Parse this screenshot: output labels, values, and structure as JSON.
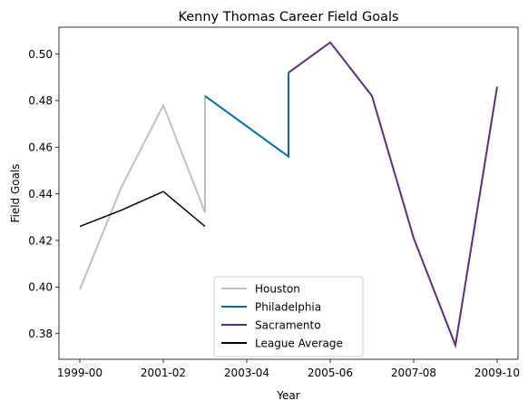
{
  "chart_data": {
    "type": "line",
    "title": "Kenny Thomas  Career Field Goals",
    "xlabel": "Year",
    "ylabel": "Field Goals",
    "x_tick_labels": [
      "1999-00",
      "2001-02",
      "2003-04",
      "2005-06",
      "2007-08",
      "2009-10"
    ],
    "y_ticks": [
      0.38,
      0.4,
      0.42,
      0.44,
      0.46,
      0.48,
      0.5
    ],
    "ylim": [
      0.369,
      0.5115
    ],
    "grid": false,
    "legend_position": "lower center",
    "series": [
      {
        "name": "Houston",
        "color": "#c0c0c0",
        "points": [
          {
            "x": "1999-00",
            "y": 0.399
          },
          {
            "x": "2000-01",
            "y": 0.443
          },
          {
            "x": "2001-02",
            "y": 0.478
          },
          {
            "x": "2002-03",
            "y": 0.432
          },
          {
            "x": "2002-03",
            "y": 0.482
          }
        ]
      },
      {
        "name": "Philadelphia",
        "color": "#006bb6",
        "points": [
          {
            "x": "2002-03",
            "y": 0.482
          },
          {
            "x": "2004-05",
            "y": 0.456
          },
          {
            "x": "2004-05",
            "y": 0.492
          }
        ]
      },
      {
        "name": "Sacramento",
        "color": "#5a2d81",
        "points": [
          {
            "x": "2004-05",
            "y": 0.492
          },
          {
            "x": "2005-06",
            "y": 0.505
          },
          {
            "x": "2006-07",
            "y": 0.482
          },
          {
            "x": "2007-08",
            "y": 0.421
          },
          {
            "x": "2008-09",
            "y": 0.375
          },
          {
            "x": "2009-10",
            "y": 0.486
          }
        ]
      },
      {
        "name": "League Average",
        "color": "#000000",
        "points": [
          {
            "x": "1999-00",
            "y": 0.426
          },
          {
            "x": "2000-01",
            "y": 0.433
          },
          {
            "x": "2001-02",
            "y": 0.441
          },
          {
            "x": "2002-03",
            "y": 0.426
          }
        ]
      }
    ]
  }
}
